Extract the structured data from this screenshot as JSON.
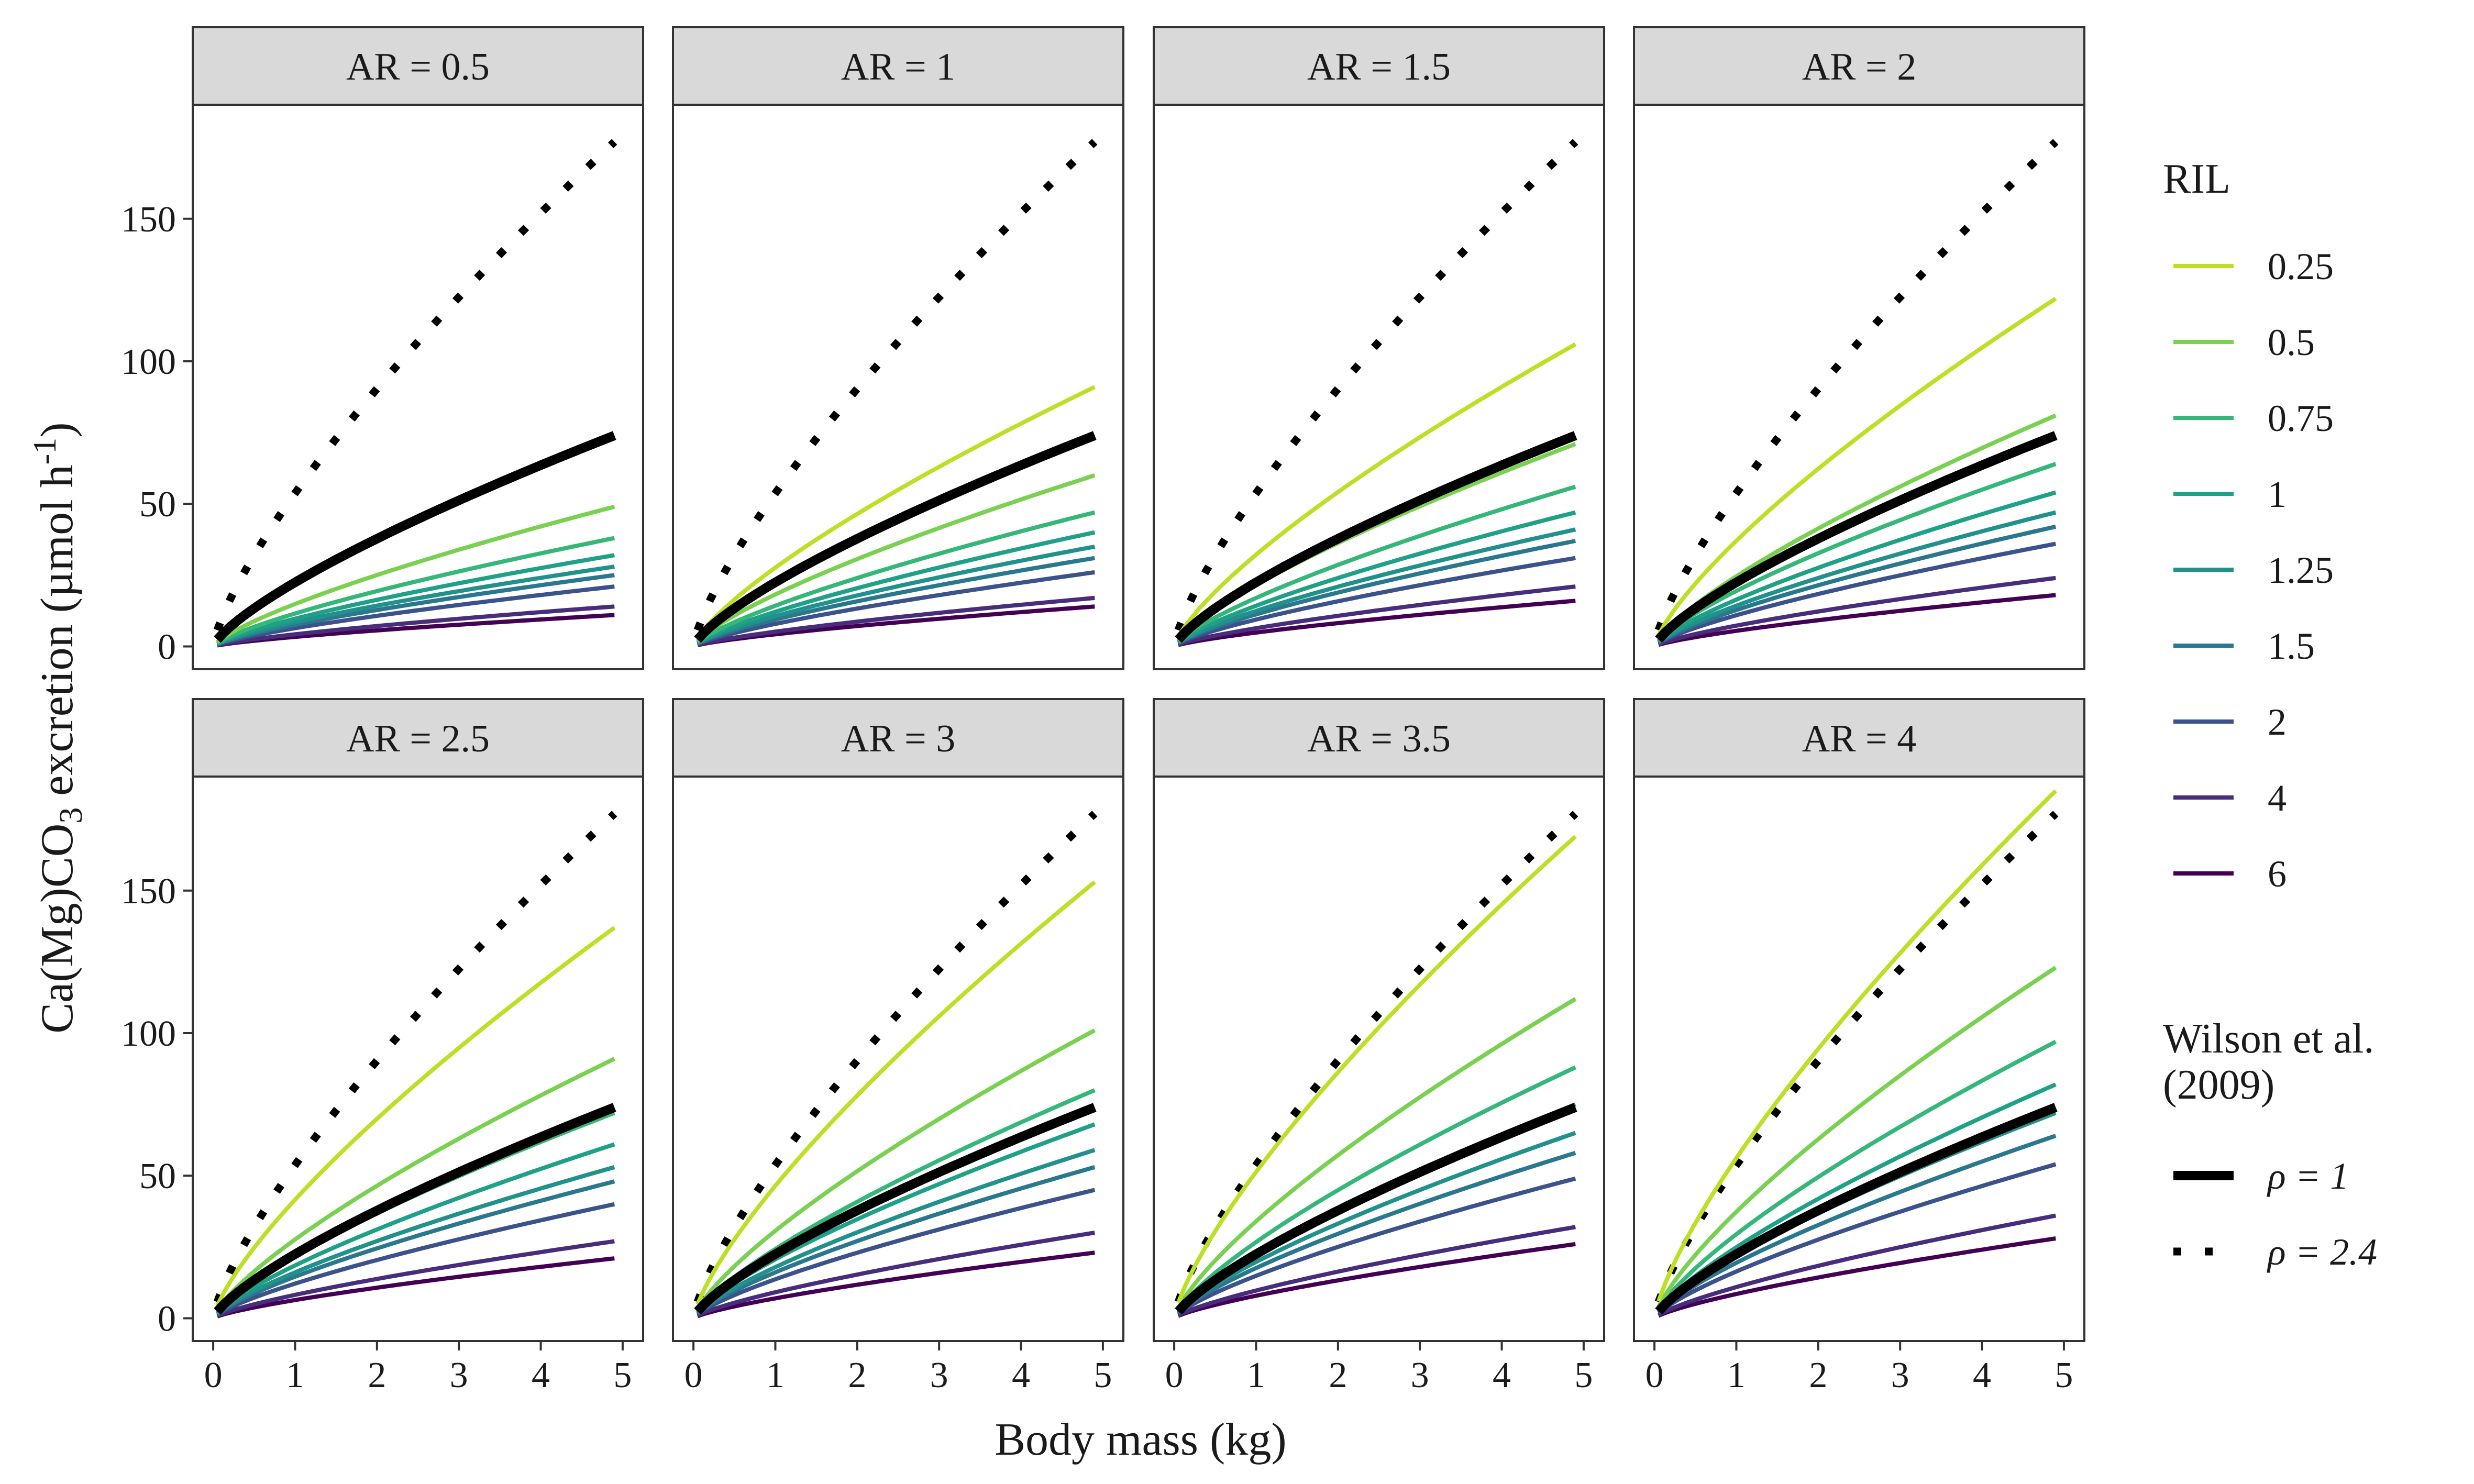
{
  "chart_data": {
    "type": "line",
    "facet_label_prefix": "AR = ",
    "xlabel": "Body mass (kg)",
    "ylabel": "Ca(Mg)CO3 excretion (µmol h-1)",
    "ylabel_parts": {
      "pre": "Ca(Mg)CO",
      "sub": "3",
      "mid": " excretion (µmol h",
      "sup": "-1",
      "post": ")"
    },
    "xlim": [
      0,
      5
    ],
    "ylim": [
      0,
      190
    ],
    "xticks": [
      0,
      1,
      2,
      3,
      4,
      5
    ],
    "yticks": [
      0,
      50,
      100,
      150
    ],
    "x_range_data": [
      0.05,
      4.9
    ],
    "grid": false,
    "legend_position": "right",
    "legend": {
      "ril_title": "RIL",
      "ril": [
        {
          "label": "0.25",
          "color": "#bddf26"
        },
        {
          "label": "0.5",
          "color": "#7ad151"
        },
        {
          "label": "0.75",
          "color": "#35b779"
        },
        {
          "label": "1",
          "color": "#1fa187"
        },
        {
          "label": "1.25",
          "color": "#21918c"
        },
        {
          "label": "1.5",
          "color": "#2a788e"
        },
        {
          "label": "2",
          "color": "#3b528b"
        },
        {
          "label": "4",
          "color": "#472d7b"
        },
        {
          "label": "6",
          "color": "#440154"
        }
      ],
      "ref_title_line1": "Wilson et al.",
      "ref_title_line2": "(2009)",
      "ref": [
        {
          "label": "ρ = 1",
          "style": "solid",
          "color": "#000000"
        },
        {
          "label": "ρ = 2.4",
          "style": "dotted",
          "color": "#000000"
        }
      ]
    },
    "reference_end_values": {
      "rho_1": 74,
      "rho_2.4": 177
    },
    "facets": [
      {
        "AR": "0.5",
        "end_values": [
          73,
          49,
          38,
          32,
          28,
          25,
          21,
          14,
          11
        ]
      },
      {
        "AR": "1",
        "end_values": [
          91,
          60,
          47,
          40,
          35,
          31,
          26,
          17,
          14
        ]
      },
      {
        "AR": "1.5",
        "end_values": [
          106,
          71,
          56,
          47,
          41,
          37,
          31,
          21,
          16
        ]
      },
      {
        "AR": "2",
        "end_values": [
          122,
          81,
          64,
          54,
          47,
          42,
          36,
          24,
          18
        ]
      },
      {
        "AR": "2.5",
        "end_values": [
          137,
          91,
          72,
          61,
          53,
          48,
          40,
          27,
          21
        ]
      },
      {
        "AR": "3",
        "end_values": [
          153,
          101,
          80,
          68,
          59,
          53,
          45,
          30,
          23
        ]
      },
      {
        "AR": "3.5",
        "end_values": [
          169,
          112,
          88,
          75,
          65,
          58,
          49,
          32,
          26
        ]
      },
      {
        "AR": "4",
        "end_values": [
          185,
          123,
          97,
          82,
          72,
          64,
          54,
          36,
          28
        ]
      }
    ]
  }
}
